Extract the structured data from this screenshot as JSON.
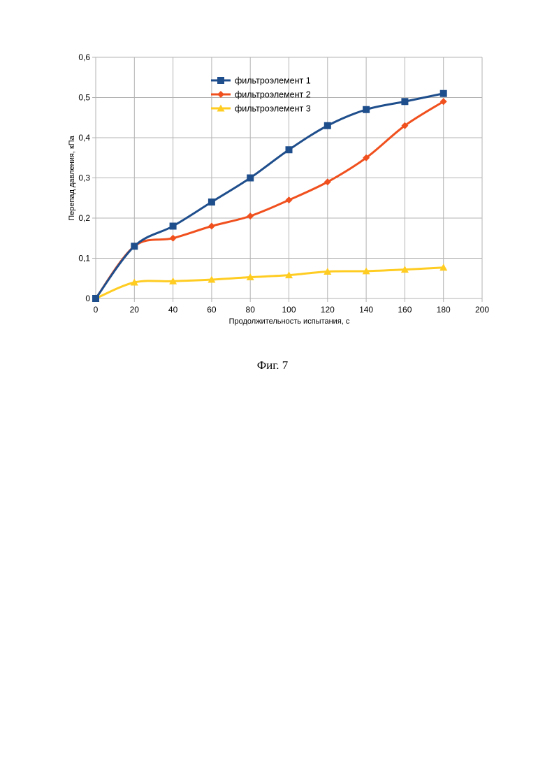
{
  "caption": "Фиг. 7",
  "chart_data": {
    "type": "line",
    "xlabel": "Продолжительность испытания, с",
    "ylabel": "Перепад давления, кПа",
    "xlim": [
      0,
      200
    ],
    "ylim": [
      0,
      0.6
    ],
    "xticks": [
      "0",
      "20",
      "40",
      "60",
      "80",
      "100",
      "120",
      "140",
      "160",
      "180",
      "200"
    ],
    "yticks": [
      "0",
      "0,1",
      "0,2",
      "0,3",
      "0,4",
      "0,5",
      "0,6"
    ],
    "grid": true,
    "legend_position": "top-center",
    "x": [
      0,
      20,
      40,
      60,
      80,
      100,
      120,
      140,
      160,
      180
    ],
    "series": [
      {
        "name": "фильтроэлемент 1",
        "color": "#1f4e8c",
        "marker": "square",
        "values": [
          0,
          0.13,
          0.18,
          0.24,
          0.3,
          0.37,
          0.43,
          0.47,
          0.49,
          0.51
        ]
      },
      {
        "name": "фильтроэлемент 2",
        "color": "#f0501e",
        "marker": "diamond",
        "values": [
          0,
          0.13,
          0.15,
          0.18,
          0.205,
          0.245,
          0.29,
          0.35,
          0.43,
          0.49
        ]
      },
      {
        "name": "фильтроэлемент 3",
        "color": "#ffcc22",
        "marker": "triangle",
        "values": [
          0,
          0.04,
          0.043,
          0.047,
          0.053,
          0.058,
          0.067,
          0.068,
          0.072,
          0.077
        ]
      }
    ]
  }
}
